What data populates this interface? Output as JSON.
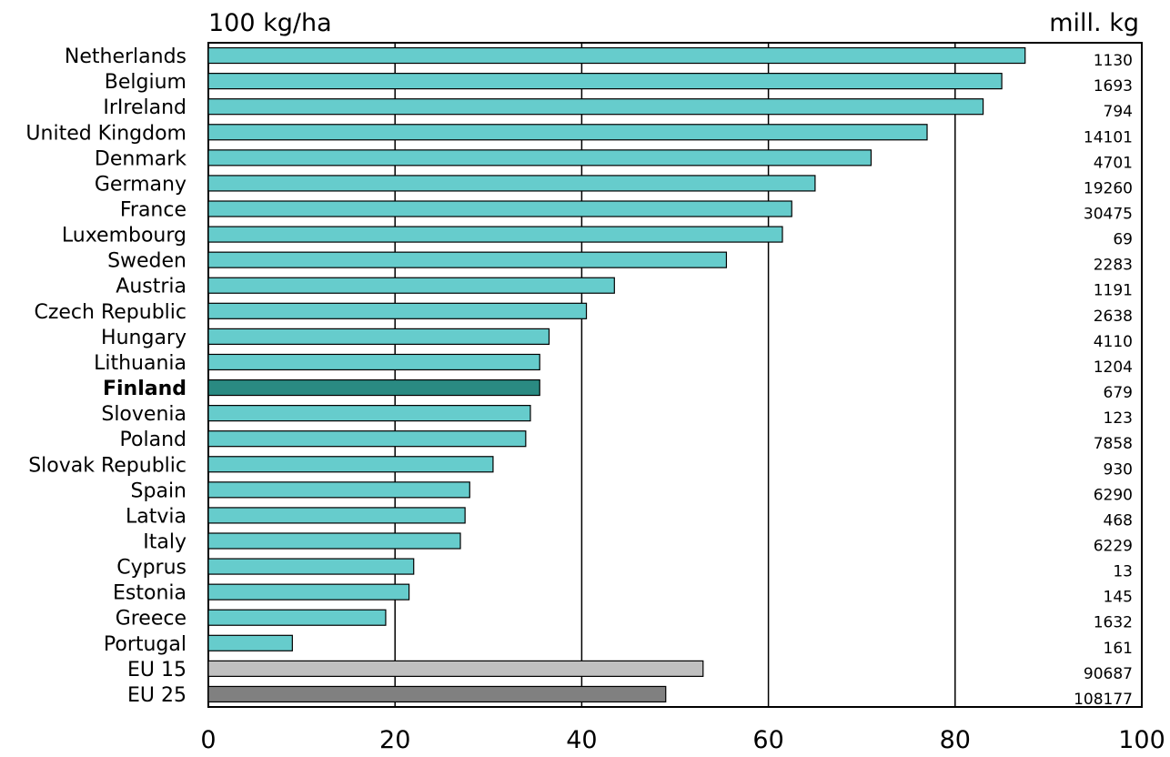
{
  "chart_data": {
    "type": "bar",
    "orientation": "horizontal",
    "x_unit_label": "100 kg/ha",
    "secondary_label": "mill. kg",
    "xlim": [
      0,
      100
    ],
    "x_ticks": [
      0,
      20,
      40,
      60,
      80,
      100
    ],
    "grid": true,
    "categories": [
      "Netherlands",
      "Belgium",
      "IrIreland",
      "United Kingdom",
      "Denmark",
      "Germany",
      "France",
      "Luxembourg",
      "Sweden",
      "Austria",
      "Czech Republic",
      "Hungary",
      "Lithuania",
      "Finland",
      "Slovenia",
      "Poland",
      "Slovak Republic",
      "Spain",
      "Latvia",
      "Italy",
      "Cyprus",
      "Estonia",
      "Greece",
      "Portugal",
      "EU 15",
      "EU 25"
    ],
    "values": [
      87.5,
      85,
      83,
      77,
      71,
      65,
      62.5,
      61.5,
      55.5,
      43.5,
      40.5,
      36.5,
      35.5,
      35.5,
      34.5,
      34,
      30.5,
      28,
      27.5,
      27,
      22,
      21.5,
      19,
      9,
      53,
      49
    ],
    "secondary_values": [
      "1130",
      "1693",
      "794",
      "14101",
      "4701",
      "19260",
      "30475",
      "69",
      "2283",
      "1191",
      "2638",
      "4110",
      "1204",
      "679",
      "123",
      "7858",
      "930",
      "6290",
      "468",
      "6229",
      "13",
      "145",
      "1632",
      "161",
      "90687",
      "108177"
    ],
    "highlight": "Finland",
    "colors": {
      "default": "#66cccc",
      "highlight": "#2a8a82",
      "EU 15": "#c0c0c0",
      "EU 25": "#808080",
      "outline": "#000000"
    }
  }
}
